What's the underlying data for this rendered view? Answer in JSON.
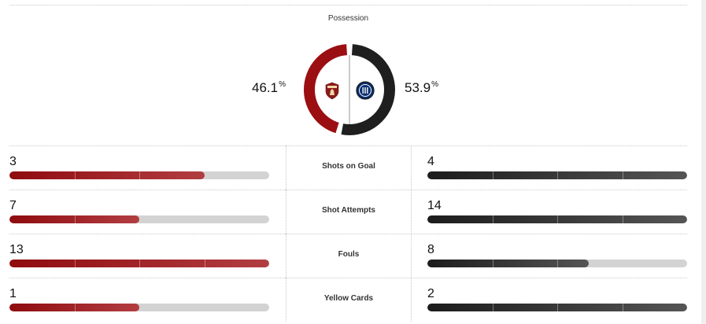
{
  "possession": {
    "title": "Possession",
    "home": {
      "value": "46.1",
      "unit": "%",
      "fraction": 0.461,
      "color": "#9b0f12",
      "badge_icon": "torino-crest-icon"
    },
    "away": {
      "value": "53.9",
      "unit": "%",
      "fraction": 0.539,
      "color": "#1f1f1f",
      "badge_icon": "inter-crest-icon"
    }
  },
  "stats": [
    {
      "label": "Shots on Goal",
      "home": "3",
      "away": "4",
      "home_fill": 0.75,
      "away_fill": 1.0
    },
    {
      "label": "Shot Attempts",
      "home": "7",
      "away": "14",
      "home_fill": 0.5,
      "away_fill": 1.0
    },
    {
      "label": "Fouls",
      "home": "13",
      "away": "8",
      "home_fill": 1.0,
      "away_fill": 0.62
    },
    {
      "label": "Yellow Cards",
      "home": "1",
      "away": "2",
      "home_fill": 0.5,
      "away_fill": 1.0
    }
  ],
  "colors": {
    "home": "#9b0f12",
    "away": "#1f1f1f",
    "track": "#d3d3d3"
  }
}
